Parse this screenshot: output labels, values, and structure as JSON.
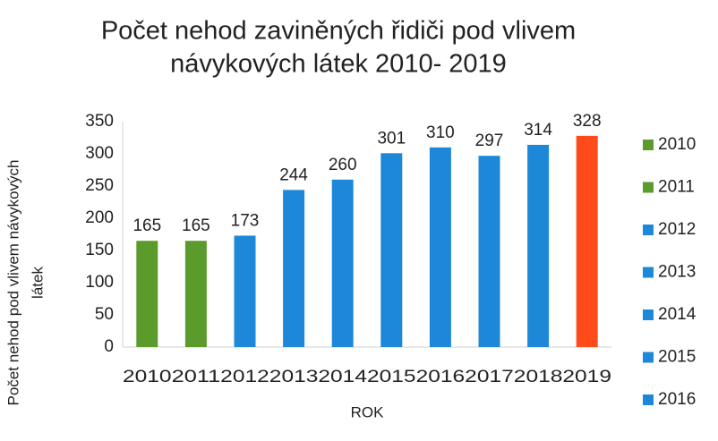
{
  "chart_data": {
    "type": "bar",
    "title": [
      "Počet nehod zaviněných řidiči pod vlivem",
      "návykových látek 2010- 2019"
    ],
    "y_label": [
      "Počet nehod pod vlivem návykových",
      "látek"
    ],
    "x_label": "ROK",
    "categories": [
      "2010",
      "2011",
      "2012",
      "2013",
      "2014",
      "2015",
      "2016",
      "2017",
      "2018",
      "2019"
    ],
    "values": [
      165,
      165,
      173,
      244,
      260,
      301,
      310,
      297,
      314,
      328
    ],
    "colors": [
      "#5b9b2b",
      "#5b9b2b",
      "#1e88d8",
      "#1e88d8",
      "#1e88d8",
      "#1e88d8",
      "#1e88d8",
      "#1e88d8",
      "#1e88d8",
      "#ff4b1a"
    ],
    "ylim": [
      0,
      350
    ],
    "yticks": [
      0,
      50,
      100,
      150,
      200,
      250,
      300,
      350
    ],
    "grid": false,
    "legend": "right"
  }
}
